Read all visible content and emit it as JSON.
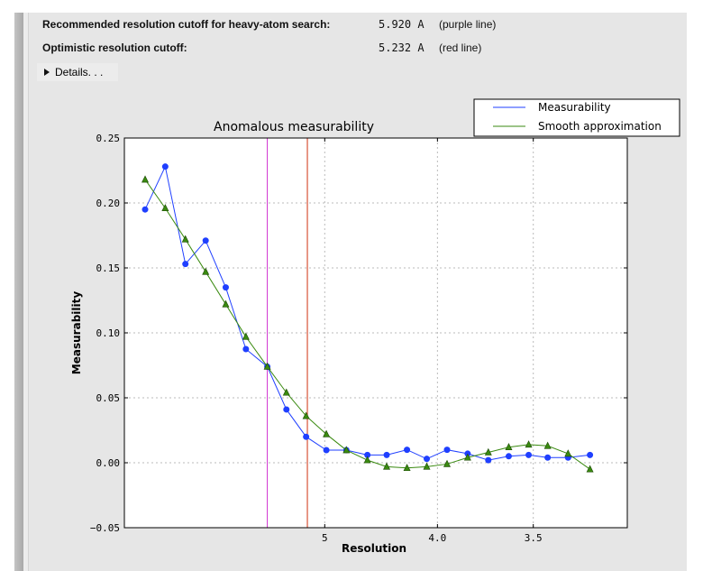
{
  "summary": {
    "recommended_label": "Recommended resolution cutoff for heavy-atom search:",
    "recommended_value": "5.920 A",
    "recommended_note": "(purple line)",
    "optimistic_label": "Optimistic resolution cutoff:",
    "optimistic_value": "5.232 A",
    "optimistic_note": "(red line)",
    "details_label": "Details. . ."
  },
  "chart_data": {
    "type": "line",
    "title": "Anomalous measurability",
    "xlabel": "Resolution",
    "ylabel": "Measurability",
    "x_scale": "reciprocal-squared (1/d^2)",
    "xlim": [
      "inf",
      3.16
    ],
    "ylim": [
      -0.05,
      0.25
    ],
    "grid": true,
    "legend_position": "above-right",
    "x_ticks": [
      "5",
      "4.0",
      "3.5"
    ],
    "x_tick_values": [
      5.0,
      4.0,
      3.5
    ],
    "y_ticks": [
      "0.25",
      "0.20",
      "0.15",
      "0.10",
      "0.05",
      "0.00",
      "−0.05"
    ],
    "y_tick_values": [
      0.25,
      0.2,
      0.15,
      0.1,
      0.05,
      0.0,
      -0.05
    ],
    "x": [
      15.54,
      11.07,
      9.06,
      7.85,
      7.03,
      6.42,
      5.92,
      5.56,
      5.25,
      4.98,
      4.75,
      4.54,
      4.37,
      4.21,
      4.07,
      3.94,
      3.82,
      3.71,
      3.61,
      3.52,
      3.44,
      3.36,
      3.28
    ],
    "series": [
      {
        "name": "Measurability",
        "color": "#1f3fff",
        "marker": "circle",
        "values": [
          0.195,
          0.228,
          0.153,
          0.171,
          0.135,
          0.0875,
          0.074,
          0.041,
          0.02,
          0.0097,
          0.0097,
          0.006,
          0.006,
          0.01,
          0.003,
          0.01,
          0.007,
          0.002,
          0.005,
          0.006,
          0.004,
          0.004,
          0.006
        ]
      },
      {
        "name": "Smooth approximation",
        "color": "#3a8a10",
        "marker": "triangle",
        "values": [
          0.218,
          0.196,
          0.172,
          0.147,
          0.122,
          0.097,
          0.074,
          0.054,
          0.036,
          0.022,
          0.0097,
          0.002,
          -0.003,
          -0.004,
          -0.003,
          -0.001,
          0.004,
          0.008,
          0.012,
          0.014,
          0.013,
          0.007,
          -0.005
        ]
      }
    ],
    "vlines": [
      {
        "x": 5.92,
        "color": "#d030d0",
        "label": "purple line"
      },
      {
        "x": 5.232,
        "color": "#d03010",
        "label": "red line"
      }
    ]
  }
}
